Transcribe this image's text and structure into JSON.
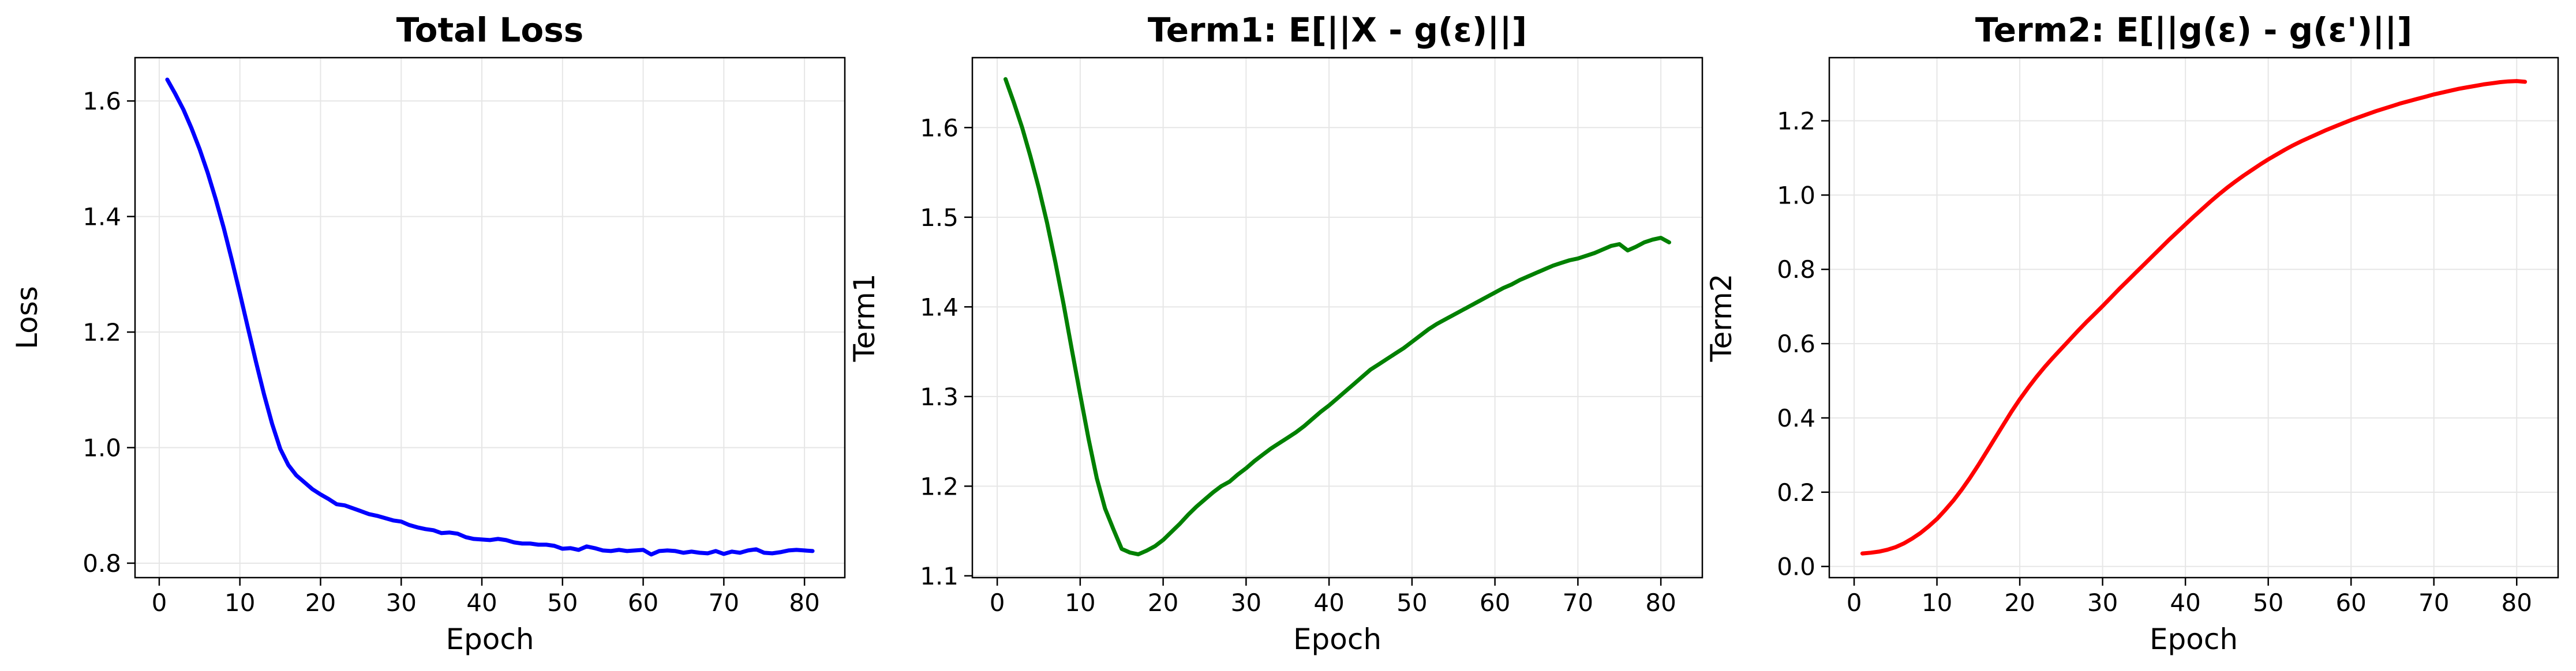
{
  "chart_data": [
    {
      "type": "line",
      "title": "Total Loss",
      "xlabel": "Epoch",
      "ylabel": "Loss",
      "xlim": [
        -3,
        85
      ],
      "ylim": [
        0.775,
        1.675
      ],
      "xticks": [
        0,
        10,
        20,
        30,
        40,
        50,
        60,
        70,
        80
      ],
      "yticks": [
        0.8,
        1.0,
        1.2,
        1.4,
        1.6
      ],
      "ytick_labels": [
        "0.8",
        "1.0",
        "1.2",
        "1.4",
        "1.6"
      ],
      "grid": true,
      "series": [
        {
          "color": "#0000ff",
          "x": [
            1,
            2,
            3,
            4,
            5,
            6,
            7,
            8,
            9,
            10,
            11,
            12,
            13,
            14,
            15,
            16,
            17,
            18,
            19,
            20,
            21,
            22,
            23,
            24,
            25,
            26,
            27,
            28,
            29,
            30,
            31,
            32,
            33,
            34,
            35,
            36,
            37,
            38,
            39,
            40,
            41,
            42,
            43,
            44,
            45,
            46,
            47,
            48,
            49,
            50,
            51,
            52,
            53,
            54,
            55,
            56,
            57,
            58,
            59,
            60,
            61,
            62,
            63,
            64,
            65,
            66,
            67,
            68,
            69,
            70,
            71,
            72,
            73,
            74,
            75,
            76,
            77,
            78,
            79,
            80,
            81
          ],
          "y": [
            1.637,
            1.612,
            1.585,
            1.553,
            1.517,
            1.476,
            1.43,
            1.38,
            1.325,
            1.267,
            1.207,
            1.148,
            1.092,
            1.041,
            0.998,
            0.97,
            0.952,
            0.94,
            0.928,
            0.919,
            0.911,
            0.902,
            0.9,
            0.895,
            0.89,
            0.885,
            0.882,
            0.878,
            0.874,
            0.872,
            0.866,
            0.862,
            0.859,
            0.857,
            0.852,
            0.853,
            0.851,
            0.845,
            0.842,
            0.841,
            0.84,
            0.842,
            0.84,
            0.836,
            0.834,
            0.834,
            0.832,
            0.832,
            0.83,
            0.825,
            0.826,
            0.823,
            0.829,
            0.826,
            0.822,
            0.821,
            0.823,
            0.821,
            0.822,
            0.823,
            0.815,
            0.821,
            0.822,
            0.821,
            0.818,
            0.82,
            0.818,
            0.817,
            0.821,
            0.816,
            0.82,
            0.818,
            0.822,
            0.824,
            0.818,
            0.817,
            0.819,
            0.822,
            0.823,
            0.822,
            0.821
          ]
        }
      ]
    },
    {
      "type": "line",
      "title": "Term1: E[||X - g(ε)||]",
      "xlabel": "Epoch",
      "ylabel": "Term1",
      "xlim": [
        -3,
        85
      ],
      "ylim": [
        1.098,
        1.678
      ],
      "xticks": [
        0,
        10,
        20,
        30,
        40,
        50,
        60,
        70,
        80
      ],
      "yticks": [
        1.1,
        1.2,
        1.3,
        1.4,
        1.5,
        1.6
      ],
      "ytick_labels": [
        "1.1",
        "1.2",
        "1.3",
        "1.4",
        "1.5",
        "1.6"
      ],
      "grid": true,
      "series": [
        {
          "color": "#008000",
          "x": [
            1,
            2,
            3,
            4,
            5,
            6,
            7,
            8,
            9,
            10,
            11,
            12,
            13,
            14,
            15,
            16,
            17,
            18,
            19,
            20,
            21,
            22,
            23,
            24,
            25,
            26,
            27,
            28,
            29,
            30,
            31,
            32,
            33,
            34,
            35,
            36,
            37,
            38,
            39,
            40,
            41,
            42,
            43,
            44,
            45,
            46,
            47,
            48,
            49,
            50,
            51,
            52,
            53,
            54,
            55,
            56,
            57,
            58,
            59,
            60,
            61,
            62,
            63,
            64,
            65,
            66,
            67,
            68,
            69,
            70,
            71,
            72,
            73,
            74,
            75,
            76,
            77,
            78,
            79,
            80,
            81
          ],
          "y": [
            1.654,
            1.628,
            1.6,
            1.568,
            1.533,
            1.494,
            1.45,
            1.403,
            1.352,
            1.302,
            1.253,
            1.209,
            1.175,
            1.152,
            1.13,
            1.126,
            1.124,
            1.128,
            1.133,
            1.14,
            1.149,
            1.158,
            1.168,
            1.177,
            1.185,
            1.193,
            1.2,
            1.205,
            1.213,
            1.22,
            1.228,
            1.235,
            1.242,
            1.248,
            1.254,
            1.26,
            1.267,
            1.275,
            1.283,
            1.29,
            1.298,
            1.306,
            1.314,
            1.322,
            1.33,
            1.336,
            1.342,
            1.348,
            1.354,
            1.361,
            1.368,
            1.375,
            1.381,
            1.386,
            1.391,
            1.396,
            1.401,
            1.406,
            1.411,
            1.416,
            1.421,
            1.425,
            1.43,
            1.434,
            1.438,
            1.442,
            1.446,
            1.449,
            1.452,
            1.454,
            1.457,
            1.46,
            1.464,
            1.468,
            1.47,
            1.463,
            1.467,
            1.472,
            1.475,
            1.477,
            1.472
          ]
        }
      ]
    },
    {
      "type": "line",
      "title": "Term2: E[||g(ε) - g(ε')||]",
      "xlabel": "Epoch",
      "ylabel": "Term2",
      "xlim": [
        -3,
        85
      ],
      "ylim": [
        -0.03,
        1.37
      ],
      "xticks": [
        0,
        10,
        20,
        30,
        40,
        50,
        60,
        70,
        80
      ],
      "yticks": [
        0.0,
        0.2,
        0.4,
        0.6,
        0.8,
        1.0,
        1.2
      ],
      "ytick_labels": [
        "0.0",
        "0.2",
        "0.4",
        "0.6",
        "0.8",
        "1.0",
        "1.2"
      ],
      "grid": true,
      "series": [
        {
          "color": "#ff0000",
          "x": [
            1,
            2,
            3,
            4,
            5,
            6,
            7,
            8,
            9,
            10,
            11,
            12,
            13,
            14,
            15,
            16,
            17,
            18,
            19,
            20,
            21,
            22,
            23,
            24,
            25,
            26,
            27,
            28,
            29,
            30,
            31,
            32,
            33,
            34,
            35,
            36,
            37,
            38,
            39,
            40,
            41,
            42,
            43,
            44,
            45,
            46,
            47,
            48,
            49,
            50,
            51,
            52,
            53,
            54,
            55,
            56,
            57,
            58,
            59,
            60,
            61,
            62,
            63,
            64,
            65,
            66,
            67,
            68,
            69,
            70,
            71,
            72,
            73,
            74,
            75,
            76,
            77,
            78,
            79,
            80,
            81
          ],
          "y": [
            0.035,
            0.037,
            0.04,
            0.045,
            0.052,
            0.062,
            0.075,
            0.09,
            0.108,
            0.128,
            0.152,
            0.178,
            0.207,
            0.239,
            0.273,
            0.309,
            0.345,
            0.381,
            0.417,
            0.45,
            0.481,
            0.51,
            0.537,
            0.562,
            0.586,
            0.61,
            0.634,
            0.657,
            0.679,
            0.701,
            0.724,
            0.747,
            0.769,
            0.791,
            0.813,
            0.835,
            0.857,
            0.879,
            0.9,
            0.921,
            0.942,
            0.962,
            0.982,
            1.001,
            1.019,
            1.036,
            1.052,
            1.067,
            1.082,
            1.096,
            1.109,
            1.122,
            1.134,
            1.145,
            1.155,
            1.165,
            1.175,
            1.184,
            1.193,
            1.202,
            1.21,
            1.218,
            1.226,
            1.233,
            1.24,
            1.247,
            1.253,
            1.259,
            1.265,
            1.271,
            1.276,
            1.281,
            1.286,
            1.29,
            1.294,
            1.298,
            1.301,
            1.304,
            1.306,
            1.307,
            1.305
          ]
        }
      ]
    }
  ]
}
